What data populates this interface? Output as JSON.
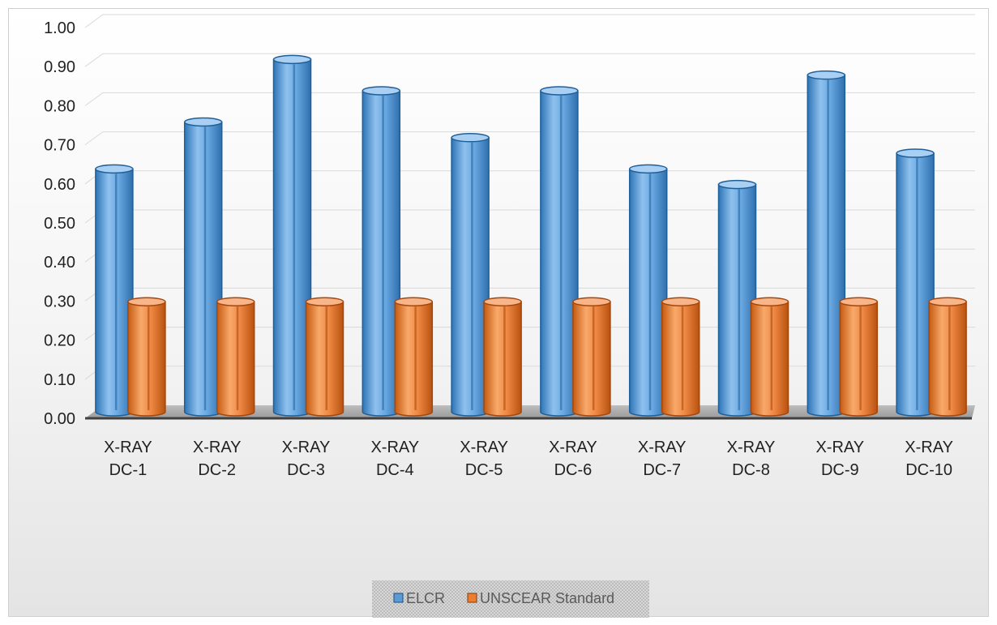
{
  "chart_data": {
    "type": "bar",
    "title": "",
    "xlabel": "",
    "ylabel": "",
    "ylim": [
      0,
      1
    ],
    "y_ticks": [
      "0.00",
      "0.10",
      "0.20",
      "0.30",
      "0.40",
      "0.50",
      "0.60",
      "0.70",
      "0.80",
      "0.90",
      "1.00"
    ],
    "categories": [
      [
        "X-RAY",
        "DC-1"
      ],
      [
        "X-RAY",
        "DC-2"
      ],
      [
        "X-RAY",
        "DC-3"
      ],
      [
        "X-RAY",
        "DC-4"
      ],
      [
        "X-RAY",
        "DC-5"
      ],
      [
        "X-RAY",
        "DC-6"
      ],
      [
        "X-RAY",
        "DC-7"
      ],
      [
        "X-RAY",
        "DC-8"
      ],
      [
        "X-RAY",
        "DC-9"
      ],
      [
        "X-RAY",
        "DC-10"
      ]
    ],
    "series": [
      {
        "name": "ELCR",
        "color": "#5b9bd5",
        "values": [
          0.63,
          0.75,
          0.91,
          0.83,
          0.71,
          0.83,
          0.63,
          0.59,
          0.87,
          0.67
        ]
      },
      {
        "name": "UNSCEAR Standard",
        "color": "#ed7d31",
        "values": [
          0.29,
          0.29,
          0.29,
          0.29,
          0.29,
          0.29,
          0.29,
          0.29,
          0.29,
          0.29
        ]
      }
    ],
    "grid": true,
    "legend_position": "bottom"
  }
}
